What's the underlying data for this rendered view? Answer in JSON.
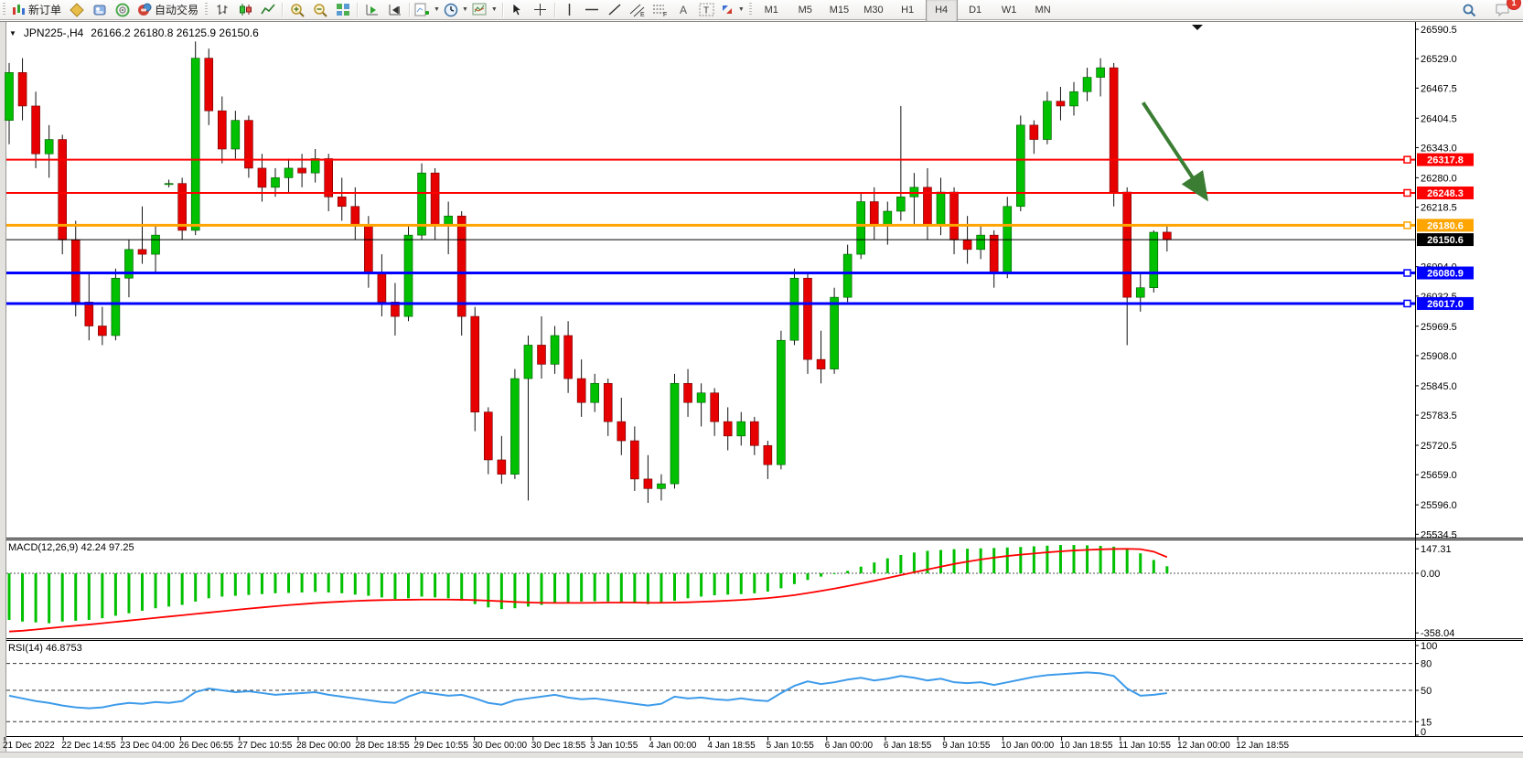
{
  "toolbar": {
    "new_order_label": "新订单",
    "autotrading_label": "自动交易",
    "timeframes": [
      "M1",
      "M5",
      "M15",
      "M30",
      "H1",
      "H4",
      "D1",
      "W1",
      "MN"
    ],
    "active_timeframe": "H4",
    "notification_badge": "1",
    "icons": [
      "new-order",
      "metaeditor",
      "terminal",
      "market-sonar",
      "autotrading",
      "bar-chart",
      "candlestick-chart",
      "line-chart",
      "zoom-in",
      "zoom-out",
      "tile-windows",
      "auto-scroll",
      "chart-shift",
      "add-indicator",
      "periods",
      "templates",
      "cursor",
      "crosshair",
      "vertical-line",
      "horizontal-line",
      "trend-line",
      "equidistant-channel",
      "fibonacci",
      "text",
      "text-label",
      "arrows",
      "search",
      "notifications"
    ]
  },
  "chart": {
    "symbol_title": "JPN225-,H4",
    "ohlc": "26166.2 26180.8 26125.9 26150.6",
    "price_ticks": [
      26590.5,
      26529.0,
      26467.5,
      26404.5,
      26343.0,
      26280.0,
      26218.5,
      26094.0,
      26032.5,
      25969.5,
      25908.0,
      25845.0,
      25783.5,
      25720.5,
      25659.0,
      25596.0,
      25534.5
    ],
    "levels": [
      {
        "label": "26317.8",
        "price": 26317.8,
        "color": "#FF0000",
        "width": 2
      },
      {
        "label": "26248.3",
        "price": 26248.3,
        "color": "#FF0000",
        "width": 2
      },
      {
        "label": "26180.6",
        "price": 26180.6,
        "color": "#FFA500",
        "width": 3
      },
      {
        "label": "26080.9",
        "price": 26080.9,
        "color": "#0000FF",
        "width": 3
      },
      {
        "label": "26017.0",
        "price": 26017.0,
        "color": "#0000FF",
        "width": 3
      }
    ],
    "current_price": {
      "label": "26150.6",
      "price": 26150.6,
      "color": "#000000"
    },
    "time_labels": [
      "21 Dec 2022",
      "22 Dec 14:55",
      "23 Dec 04:00",
      "26 Dec 06:55",
      "27 Dec 10:55",
      "28 Dec 00:00",
      "28 Dec 18:55",
      "29 Dec 10:55",
      "30 Dec 00:00",
      "30 Dec 18:55",
      "3 Jan 10:55",
      "4 Jan 00:00",
      "4 Jan 18:55",
      "5 Jan 10:55",
      "6 Jan 00:00",
      "6 Jan 18:55",
      "9 Jan 10:55",
      "10 Jan 00:00",
      "10 Jan 18:55",
      "11 Jan 10:55",
      "12 Jan 00:00",
      "12 Jan 18:55"
    ],
    "arrow": {
      "start_bar": 85.2,
      "start_price": 26437,
      "end_bar": 89.8,
      "end_price": 26243,
      "color": "#3A7D33"
    }
  },
  "indicators": {
    "macd_label": "MACD(12,26,9) 42.24 97.25",
    "macd_axis": [
      {
        "label": "147.31",
        "value": 147.31
      },
      {
        "label": "0.00",
        "value": 0
      },
      {
        "label": "-358.04",
        "value": -358.04
      }
    ],
    "rsi_label": "RSI(14) 46.8753",
    "rsi_axis": [
      {
        "label": "100",
        "value": 100
      },
      {
        "label": "80",
        "value": 80
      },
      {
        "label": "50",
        "value": 50
      },
      {
        "label": "15",
        "value": 15
      },
      {
        "label": "0",
        "value": 0
      }
    ],
    "rsi_levels": [
      80,
      50,
      15
    ]
  },
  "chart_data": {
    "type": "candlestick",
    "symbol": "JPN225-",
    "timeframe": "H4",
    "ylim": [
      25534.5,
      26590.5
    ],
    "candles": [
      [
        26400,
        26520,
        26350,
        26500
      ],
      [
        26500,
        26530,
        26400,
        26430
      ],
      [
        26430,
        26460,
        26300,
        26330
      ],
      [
        26330,
        26390,
        26280,
        26360
      ],
      [
        26360,
        26370,
        26120,
        26150
      ],
      [
        26150,
        26190,
        25990,
        26020
      ],
      [
        26020,
        26080,
        25940,
        25970
      ],
      [
        25970,
        26010,
        25930,
        25950
      ],
      [
        25950,
        26090,
        25940,
        26070
      ],
      [
        26070,
        26150,
        26030,
        26130
      ],
      [
        26130,
        26220,
        26100,
        26120
      ],
      [
        26120,
        26180,
        26080,
        26160
      ],
      [
        26268,
        26276,
        26260,
        26268
      ],
      [
        26268,
        26280,
        26150,
        26170
      ],
      [
        26170,
        26565,
        26160,
        26530
      ],
      [
        26530,
        26550,
        26390,
        26420
      ],
      [
        26420,
        26450,
        26310,
        26340
      ],
      [
        26340,
        26420,
        26320,
        26400
      ],
      [
        26400,
        26410,
        26280,
        26300
      ],
      [
        26300,
        26330,
        26230,
        26260
      ],
      [
        26260,
        26300,
        26240,
        26280
      ],
      [
        26280,
        26320,
        26250,
        26300
      ],
      [
        26300,
        26330,
        26260,
        26290
      ],
      [
        26290,
        26340,
        26270,
        26320
      ],
      [
        26320,
        26330,
        26210,
        26240
      ],
      [
        26240,
        26280,
        26190,
        26220
      ],
      [
        26220,
        26260,
        26150,
        26180
      ],
      [
        26180,
        26200,
        26050,
        26080
      ],
      [
        26080,
        26120,
        25990,
        26020
      ],
      [
        26020,
        26060,
        25950,
        25990
      ],
      [
        25990,
        26180,
        25980,
        26160
      ],
      [
        26160,
        26310,
        26150,
        26290
      ],
      [
        26290,
        26300,
        26150,
        26180
      ],
      [
        26180,
        26230,
        26120,
        26200
      ],
      [
        26200,
        26210,
        25950,
        25990
      ],
      [
        25990,
        26010,
        25750,
        25790
      ],
      [
        25790,
        25800,
        25660,
        25690
      ],
      [
        25690,
        25740,
        25640,
        25660
      ],
      [
        25660,
        25880,
        25650,
        25860
      ],
      [
        25860,
        25950,
        25605,
        25930
      ],
      [
        25930,
        25990,
        25860,
        25890
      ],
      [
        25890,
        25970,
        25870,
        25950
      ],
      [
        25950,
        25980,
        25830,
        25860
      ],
      [
        25860,
        25900,
        25780,
        25810
      ],
      [
        25810,
        25870,
        25790,
        25850
      ],
      [
        25850,
        25860,
        25740,
        25770
      ],
      [
        25770,
        25820,
        25700,
        25730
      ],
      [
        25730,
        25760,
        25625,
        25650
      ],
      [
        25650,
        25700,
        25600,
        25630
      ],
      [
        25630,
        25660,
        25605,
        25640
      ],
      [
        25640,
        25870,
        25630,
        25850
      ],
      [
        25850,
        25880,
        25780,
        25810
      ],
      [
        25810,
        25850,
        25760,
        25830
      ],
      [
        25830,
        25840,
        25740,
        25770
      ],
      [
        25770,
        25800,
        25710,
        25740
      ],
      [
        25740,
        25790,
        25720,
        25770
      ],
      [
        25770,
        25780,
        25700,
        25720
      ],
      [
        25720,
        25730,
        25650,
        25680
      ],
      [
        25680,
        25960,
        25670,
        25940
      ],
      [
        25940,
        26090,
        25930,
        26070
      ],
      [
        26070,
        26080,
        25870,
        25900
      ],
      [
        25900,
        25960,
        25850,
        25880
      ],
      [
        25880,
        26050,
        25870,
        26030
      ],
      [
        26030,
        26140,
        26020,
        26120
      ],
      [
        26120,
        26250,
        26110,
        26230
      ],
      [
        26230,
        26260,
        26150,
        26180
      ],
      [
        26180,
        26230,
        26140,
        26210
      ],
      [
        26210,
        26430,
        26190,
        26240
      ],
      [
        26240,
        26290,
        26180,
        26260
      ],
      [
        26260,
        26300,
        26150,
        26180
      ],
      [
        26180,
        26280,
        26160,
        26250
      ],
      [
        26250,
        26260,
        26120,
        26150
      ],
      [
        26150,
        26200,
        26100,
        26130
      ],
      [
        26130,
        26180,
        26110,
        26160
      ],
      [
        26160,
        26170,
        26050,
        26080
      ],
      [
        26080,
        26240,
        26070,
        26220
      ],
      [
        26220,
        26410,
        26210,
        26390
      ],
      [
        26390,
        26400,
        26330,
        26360
      ],
      [
        26360,
        26460,
        26350,
        26440
      ],
      [
        26440,
        26470,
        26400,
        26430
      ],
      [
        26430,
        26480,
        26410,
        26460
      ],
      [
        26460,
        26510,
        26440,
        26490
      ],
      [
        26490,
        26530,
        26450,
        26510
      ],
      [
        26510,
        26520,
        26220,
        26250
      ],
      [
        26250,
        26260,
        25930,
        26030
      ],
      [
        26030,
        26080,
        26000,
        26050
      ],
      [
        26050,
        26170,
        26040,
        26166
      ],
      [
        26166.2,
        26180.8,
        26125.9,
        26150.6
      ]
    ],
    "macd_histogram": [
      -280,
      -290,
      -295,
      -300,
      -290,
      -285,
      -280,
      -270,
      -255,
      -240,
      -225,
      -210,
      -200,
      -190,
      -170,
      -150,
      -140,
      -135,
      -130,
      -125,
      -120,
      -118,
      -115,
      -112,
      -115,
      -120,
      -128,
      -135,
      -145,
      -155,
      -150,
      -140,
      -145,
      -150,
      -165,
      -185,
      -205,
      -215,
      -210,
      -200,
      -190,
      -180,
      -175,
      -170,
      -168,
      -170,
      -175,
      -180,
      -185,
      -180,
      -165,
      -150,
      -140,
      -132,
      -128,
      -125,
      -120,
      -110,
      -90,
      -65,
      -40,
      -20,
      -5,
      15,
      40,
      65,
      90,
      110,
      125,
      135,
      140,
      145,
      148,
      150,
      152,
      155,
      158,
      162,
      166,
      170,
      170,
      168,
      165,
      160,
      150,
      120,
      80,
      42.24
    ],
    "macd_signal": [
      -350,
      -345,
      -338,
      -330,
      -322,
      -315,
      -308,
      -300,
      -292,
      -284,
      -276,
      -268,
      -260,
      -252,
      -244,
      -236,
      -228,
      -220,
      -212,
      -205,
      -198,
      -191,
      -185,
      -179,
      -174,
      -170,
      -166,
      -163,
      -161,
      -160,
      -159,
      -158,
      -158,
      -158,
      -159,
      -161,
      -164,
      -168,
      -172,
      -175,
      -177,
      -178,
      -178,
      -178,
      -177,
      -176,
      -176,
      -176,
      -177,
      -177,
      -176,
      -174,
      -171,
      -168,
      -164,
      -160,
      -155,
      -149,
      -141,
      -131,
      -119,
      -106,
      -92,
      -77,
      -61,
      -45,
      -28,
      -11,
      6,
      23,
      40,
      56,
      70,
      83,
      94,
      104,
      112,
      119,
      126,
      132,
      137,
      141,
      144,
      146,
      147,
      145,
      130,
      97.25
    ],
    "rsi": [
      44,
      41,
      38,
      36,
      33,
      31,
      30,
      31,
      34,
      36,
      35,
      37,
      36,
      38,
      48,
      52,
      50,
      48,
      49,
      47,
      45,
      46,
      47,
      48,
      45,
      43,
      41,
      39,
      37,
      36,
      43,
      48,
      46,
      44,
      45,
      41,
      36,
      34,
      39,
      41,
      43,
      45,
      42,
      40,
      41,
      39,
      37,
      35,
      33,
      35,
      43,
      41,
      42,
      40,
      39,
      41,
      39,
      38,
      47,
      55,
      60,
      57,
      59,
      62,
      64,
      61,
      63,
      66,
      64,
      61,
      63,
      59,
      58,
      59,
      56,
      59,
      62,
      65,
      67,
      68,
      69,
      70,
      69,
      66,
      52,
      44,
      45,
      46.88
    ],
    "colors": {
      "bull": "#00C000",
      "bear": "#E60000",
      "wick": "#111111",
      "macd_histogram": "#00C000",
      "macd_signal": "#FF0000",
      "rsi_line": "#3D9BEA",
      "resistance": "#FF0000",
      "support": "#0000FF",
      "pivot": "#FFA500",
      "current": "#000000",
      "arrow": "#3A7D33"
    }
  }
}
